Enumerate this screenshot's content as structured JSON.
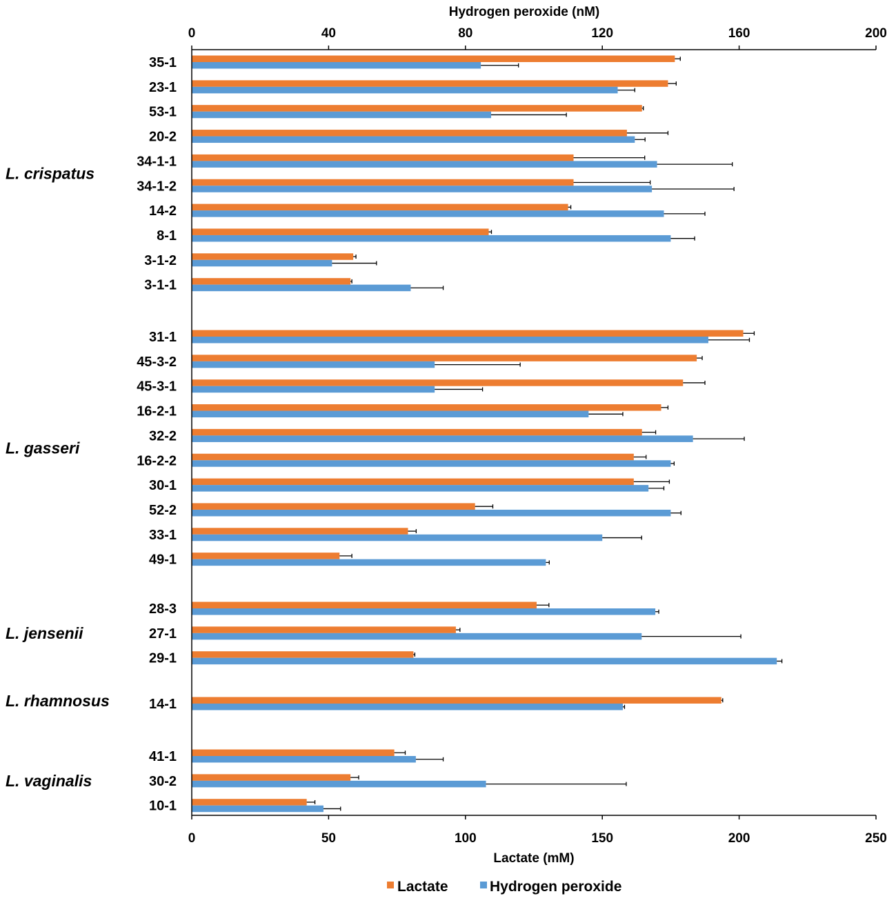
{
  "chart_data": {
    "type": "bar",
    "orientation": "horizontal",
    "title": "",
    "top_axis": {
      "label": "Hydrogen peroxide (nM)",
      "range": [
        0,
        200
      ],
      "ticks": [
        "0",
        "40",
        "80",
        "120",
        "160",
        "200"
      ]
    },
    "bottom_axis": {
      "label": "Lactate (mM)",
      "range": [
        0,
        250
      ],
      "ticks": [
        "0",
        "50",
        "100",
        "150",
        "200",
        "250"
      ]
    },
    "legend": {
      "position": "bottom",
      "entries": [
        "Lactate",
        "Hydrogen peroxide"
      ]
    },
    "colors": {
      "lactate": "#ED7D31",
      "h2o2": "#5B9BD5",
      "error": "#000000",
      "axis": "#000000"
    },
    "groups": [
      {
        "species": "L. crispatus",
        "strains": [
          {
            "name": "35-1",
            "lactate": 176.5,
            "lactate_err": 2,
            "h2o2": 84.5,
            "h2o2_err": 11
          },
          {
            "name": "23-1",
            "lactate": 174,
            "lactate_err": 3,
            "h2o2": 124.5,
            "h2o2_err": 5
          },
          {
            "name": "53-1",
            "lactate": 164.5,
            "lactate_err": 0.5,
            "h2o2": 87.5,
            "h2o2_err": 22
          },
          {
            "name": "20-2",
            "lactate": 159,
            "lactate_err": 15,
            "h2o2": 129.5,
            "h2o2_err": 3
          },
          {
            "name": "34-1-1",
            "lactate": 139.5,
            "lactate_err": 26,
            "h2o2": 136,
            "h2o2_err": 22
          },
          {
            "name": "34-1-2",
            "lactate": 139.5,
            "lactate_err": 28,
            "h2o2": 134.5,
            "h2o2_err": 24
          },
          {
            "name": "14-2",
            "lactate": 137.5,
            "lactate_err": 1,
            "h2o2": 138,
            "h2o2_err": 12
          },
          {
            "name": "8-1",
            "lactate": 108.5,
            "lactate_err": 1,
            "h2o2": 140,
            "h2o2_err": 7
          },
          {
            "name": "3-1-2",
            "lactate": 59,
            "lactate_err": 1,
            "h2o2": 41,
            "h2o2_err": 13
          },
          {
            "name": "3-1-1",
            "lactate": 58,
            "lactate_err": 0.5,
            "h2o2": 64,
            "h2o2_err": 9.5
          }
        ]
      },
      {
        "species": "L. gasseri",
        "strains": [
          {
            "name": "31-1",
            "lactate": 201.5,
            "lactate_err": 4,
            "h2o2": 151,
            "h2o2_err": 12
          },
          {
            "name": "45-3-2",
            "lactate": 184.5,
            "lactate_err": 2,
            "h2o2": 71,
            "h2o2_err": 25
          },
          {
            "name": "45-3-1",
            "lactate": 179.5,
            "lactate_err": 8,
            "h2o2": 71,
            "h2o2_err": 14
          },
          {
            "name": "16-2-1",
            "lactate": 171.5,
            "lactate_err": 2.5,
            "h2o2": 116,
            "h2o2_err": 10
          },
          {
            "name": "32-2",
            "lactate": 164.5,
            "lactate_err": 5,
            "h2o2": 146.5,
            "h2o2_err": 15
          },
          {
            "name": "16-2-2",
            "lactate": 161.5,
            "lactate_err": 4.5,
            "h2o2": 140,
            "h2o2_err": 1
          },
          {
            "name": "30-1",
            "lactate": 161.5,
            "lactate_err": 13,
            "h2o2": 133.5,
            "h2o2_err": 4.5
          },
          {
            "name": "52-2",
            "lactate": 103.5,
            "lactate_err": 6.5,
            "h2o2": 140,
            "h2o2_err": 3
          },
          {
            "name": "33-1",
            "lactate": 79,
            "lactate_err": 3,
            "h2o2": 120,
            "h2o2_err": 11.5
          },
          {
            "name": "49-1",
            "lactate": 54,
            "lactate_err": 4.5,
            "h2o2": 103.5,
            "h2o2_err": 1
          }
        ]
      },
      {
        "species": "L. jensenii",
        "strains": [
          {
            "name": "28-3",
            "lactate": 126,
            "lactate_err": 4.5,
            "h2o2": 135.5,
            "h2o2_err": 1
          },
          {
            "name": "27-1",
            "lactate": 96.5,
            "lactate_err": 1.5,
            "h2o2": 131.5,
            "h2o2_err": 29
          },
          {
            "name": "29-1",
            "lactate": 81,
            "lactate_err": 0.5,
            "h2o2": 171,
            "h2o2_err": 1.5
          }
        ]
      },
      {
        "species": "L. rhamnosus",
        "strains": [
          {
            "name": "14-1",
            "lactate": 193.5,
            "lactate_err": 0.5,
            "h2o2": 126,
            "h2o2_err": 0.5
          }
        ]
      },
      {
        "species": "L. vaginalis",
        "strains": [
          {
            "name": "41-1",
            "lactate": 74,
            "lactate_err": 4,
            "h2o2": 65.5,
            "h2o2_err": 8
          },
          {
            "name": "30-2",
            "lactate": 58,
            "lactate_err": 3,
            "h2o2": 86,
            "h2o2_err": 41
          },
          {
            "name": "10-1",
            "lactate": 42,
            "lactate_err": 3,
            "h2o2": 38.5,
            "h2o2_err": 5
          }
        ]
      }
    ]
  }
}
